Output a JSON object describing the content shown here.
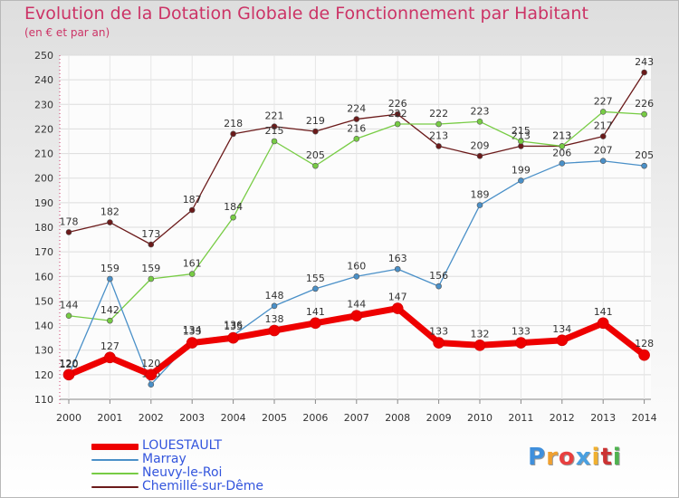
{
  "title": "Evolution de la Dotation Globale de Fonctionnement par Habitant",
  "subtitle": "(en € et par an)",
  "logo": {
    "text": "Proxiti",
    "colors": [
      "#3f8fdc",
      "#f0a030",
      "#e84040",
      "#4aa0e0",
      "#f0b030",
      "#cc3333",
      "#4fb24f"
    ]
  },
  "chart_data": {
    "type": "line",
    "title": "Evolution de la Dotation Globale de Fonctionnement par Habitant",
    "subtitle": "(en € et par an)",
    "x": [
      "2000",
      "2001",
      "2002",
      "2003",
      "2004",
      "2005",
      "2006",
      "2007",
      "2008",
      "2009",
      "2010",
      "2011",
      "2012",
      "2013",
      "2014"
    ],
    "ylim": [
      110,
      250
    ],
    "yticks": [
      110,
      120,
      130,
      140,
      150,
      160,
      170,
      180,
      190,
      200,
      210,
      220,
      230,
      240,
      250
    ],
    "grid": true,
    "legend_position": "bottom-left",
    "series": [
      {
        "name": "LOUESTAULT",
        "color": "#ee0000",
        "values": [
          120,
          127,
          120,
          133,
          135,
          138,
          141,
          144,
          147,
          133,
          132,
          133,
          134,
          141,
          128
        ]
      },
      {
        "name": "Marray",
        "color": "#4a90c8",
        "values": [
          120,
          159,
          116,
          134,
          136,
          148,
          155,
          160,
          163,
          156,
          189,
          199,
          206,
          207,
          205
        ]
      },
      {
        "name": "Neuvy-le-Roi",
        "color": "#77cc44",
        "values": [
          144,
          142,
          159,
          161,
          184,
          215,
          205,
          216,
          222,
          222,
          223,
          215,
          213,
          227,
          226
        ]
      },
      {
        "name": "Chemillé-sur-Dême",
        "color": "#6b1a1a",
        "values": [
          178,
          182,
          173,
          187,
          218,
          221,
          219,
          224,
          226,
          213,
          209,
          213,
          213,
          217,
          243
        ]
      }
    ]
  }
}
